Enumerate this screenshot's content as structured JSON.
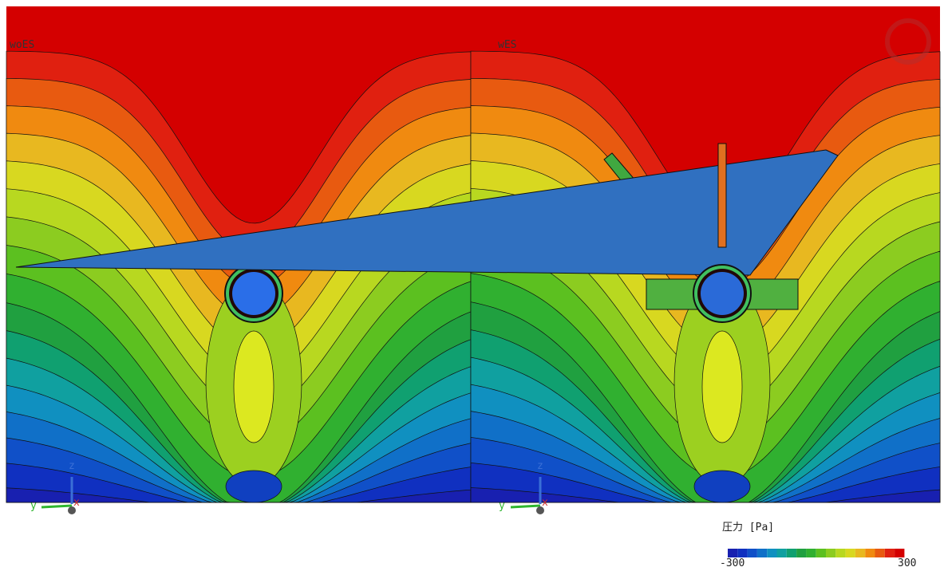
{
  "panels": [
    {
      "label": "woES",
      "axes": {
        "z": "z",
        "y": "y",
        "x": "x"
      }
    },
    {
      "label": "wES",
      "axes": {
        "z": "z",
        "y": "y",
        "x": "x"
      }
    }
  ],
  "legend": {
    "title": "圧力 [Pa]",
    "min": "-300",
    "max": "300"
  }
}
